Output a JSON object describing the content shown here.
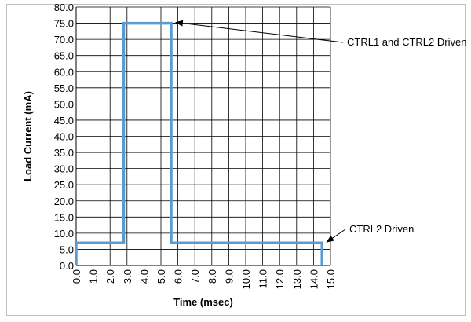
{
  "chart_data": {
    "type": "line",
    "title": "",
    "xlabel": "Time (msec)",
    "ylabel": "Load Current (mA)",
    "xlim": [
      0,
      15
    ],
    "ylim": [
      0,
      80
    ],
    "x_ticks": [
      "0.0",
      "1.0",
      "2.0",
      "3.0",
      "4.0",
      "5.0",
      "6.0",
      "7.0",
      "8.0",
      "9.0",
      "10.0",
      "11.0",
      "12.0",
      "13.0",
      "14.0",
      "15.0"
    ],
    "y_ticks": [
      "0.0",
      "5.0",
      "10.0",
      "15.0",
      "20.0",
      "25.0",
      "30.0",
      "35.0",
      "40.0",
      "45.0",
      "50.0",
      "55.0",
      "60.0",
      "65.0",
      "70.0",
      "75.0",
      "80.0"
    ],
    "grid": true,
    "series": [
      {
        "color": "#5b9bd5",
        "x": [
          0.0,
          0.0,
          2.8,
          2.8,
          5.6,
          5.6,
          14.5,
          14.5
        ],
        "y": [
          0.0,
          7.0,
          7.0,
          75.0,
          75.0,
          7.0,
          7.0,
          0.0
        ]
      }
    ],
    "annotations": [
      {
        "text": "CTRL1 and CTRL2 Driven",
        "x": 5.6,
        "y": 75.0
      },
      {
        "text": "CTRL2 Driven",
        "x": 14.5,
        "y": 7.0
      }
    ]
  }
}
